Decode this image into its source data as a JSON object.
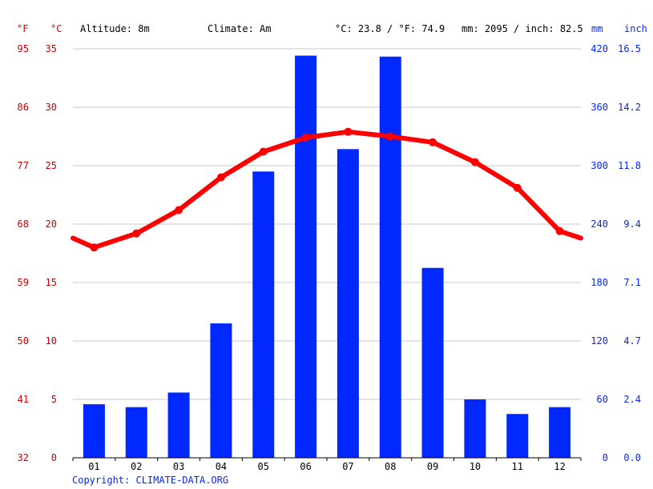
{
  "header": {
    "unit_f": "°F",
    "unit_c": "°C",
    "altitude": "Altitude: 8m",
    "climate": "Climate: Am",
    "temp_avg": "°C: 23.8 / °F: 74.9",
    "precip_avg": "mm: 2095 / inch: 82.5",
    "unit_mm": "mm",
    "unit_inch": "inch"
  },
  "footer": {
    "copyright": "Copyright: CLIMATE-DATA.ORG"
  },
  "colors": {
    "temperature": "#ff0000",
    "precipitation": "#0028ff",
    "axis_red": "#cc0000",
    "axis_blue": "#0028ff",
    "grid": "#c8c8c8",
    "text": "#000000"
  },
  "chart_data": {
    "type": "bar",
    "categories": [
      "01",
      "02",
      "03",
      "04",
      "05",
      "06",
      "07",
      "08",
      "09",
      "10",
      "11",
      "12"
    ],
    "axes": {
      "celsius_ticks": [
        "0",
        "5",
        "10",
        "15",
        "20",
        "25",
        "30",
        "35"
      ],
      "fahrenheit_ticks": [
        "32",
        "41",
        "50",
        "59",
        "68",
        "77",
        "86",
        "95"
      ],
      "mm_ticks": [
        "0",
        "60",
        "120",
        "180",
        "240",
        "300",
        "360",
        "420"
      ],
      "inch_ticks": [
        "0.0",
        "2.4",
        "4.7",
        "7.1",
        "9.4",
        "11.8",
        "14.2",
        "16.5"
      ],
      "celsius_range": [
        0,
        35
      ],
      "mm_range": [
        0,
        420
      ]
    },
    "grid": true,
    "series": [
      {
        "kind": "bar",
        "axis": "mm",
        "values": [
          55,
          52,
          67,
          138,
          294,
          413,
          317,
          412,
          195,
          60,
          45,
          52
        ]
      },
      {
        "kind": "line",
        "axis": "celsius",
        "values": [
          18.0,
          19.2,
          21.2,
          24.0,
          26.2,
          27.4,
          27.9,
          27.5,
          27.0,
          25.3,
          23.1,
          19.4
        ],
        "edge_start": 18.8,
        "edge_end": 18.8
      }
    ]
  }
}
